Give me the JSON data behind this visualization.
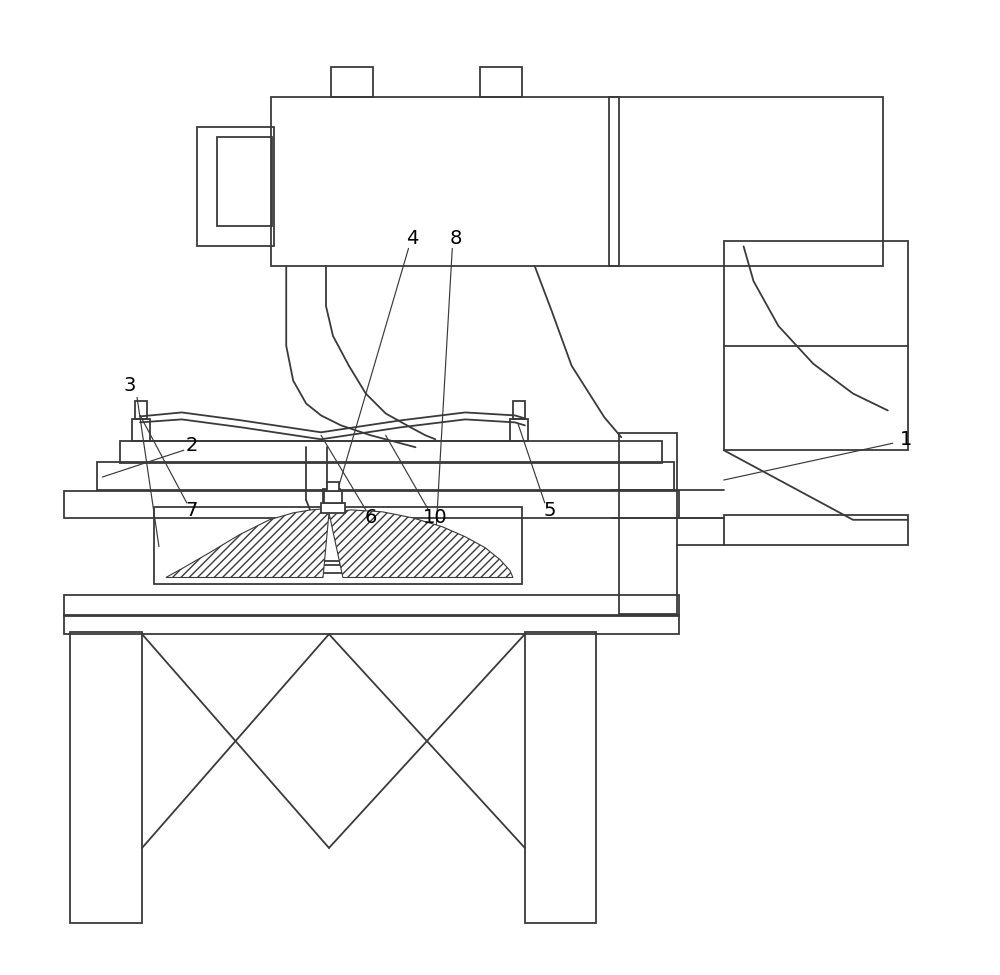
{
  "bg_color": "#ffffff",
  "line_color": "#3a3a3a",
  "lw": 1.3,
  "lw_thick": 2.0
}
